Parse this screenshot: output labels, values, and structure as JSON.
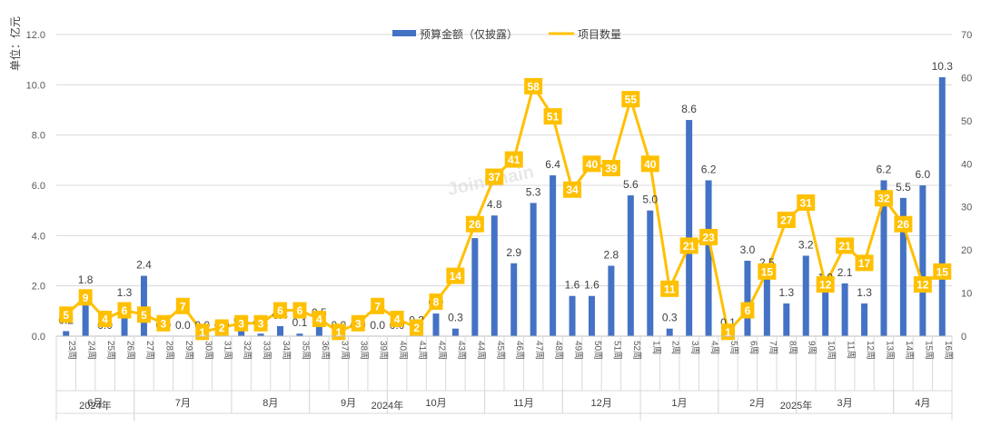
{
  "chart_data": {
    "type": "bar+line",
    "y_unit_label": "单位：亿元",
    "left_axis": {
      "min": 0,
      "max": 12,
      "step": 2,
      "ticks": [
        "0.0",
        "2.0",
        "4.0",
        "6.0",
        "8.0",
        "10.0",
        "12.0"
      ]
    },
    "right_axis": {
      "min": 0,
      "max": 70,
      "step": 10,
      "ticks": [
        "0",
        "10",
        "20",
        "30",
        "40",
        "50",
        "60",
        "70"
      ]
    },
    "legend": {
      "position": "top-center",
      "items": [
        "预算金额（仅披露）",
        "项目数量"
      ]
    },
    "colors": {
      "bar": "#4472C4",
      "line": "#FFC000",
      "grid": "#d9d9d9"
    },
    "watermark": "JoinChain",
    "weeks": [
      "23周",
      "24周",
      "25周",
      "26周",
      "27周",
      "28周",
      "29周",
      "30周",
      "31周",
      "32周",
      "33周",
      "34周",
      "35周",
      "36周",
      "37周",
      "38周",
      "39周",
      "40周",
      "41周",
      "42周",
      "43周",
      "44周",
      "45周",
      "46周",
      "47周",
      "48周",
      "49周",
      "50周",
      "51周",
      "52周",
      "1周",
      "2周",
      "3周",
      "4周",
      "5周",
      "6周",
      "7周",
      "8周",
      "9周",
      "10周",
      "11周",
      "12周",
      "13周",
      "14周",
      "15周",
      "16周"
    ],
    "series": [
      {
        "name": "预算金额（仅披露）",
        "type": "bar",
        "axis": "left",
        "values": [
          0.2,
          1.8,
          0.0,
          1.3,
          2.4,
          0.0,
          0.0,
          0.0,
          0.0,
          0.2,
          0.1,
          0.4,
          0.1,
          0.5,
          0.0,
          0.0,
          0.0,
          0.0,
          0.2,
          0.9,
          0.3,
          3.9,
          4.8,
          2.9,
          5.3,
          6.4,
          1.6,
          1.6,
          2.8,
          5.6,
          5.0,
          0.3,
          8.6,
          6.2,
          0.1,
          3.0,
          2.5,
          1.3,
          3.2,
          1.9,
          2.1,
          1.3,
          6.2,
          5.5,
          6.0,
          10.3
        ],
        "labels": [
          "0.2",
          "1.8",
          "0.0",
          "1.3",
          "2.4",
          "0.0",
          "0.0",
          "0.0",
          "0.0",
          "0.2",
          "0.1",
          "0.4",
          "0.1",
          "0.5",
          "0.0",
          "0.0",
          "0.0",
          "0.0",
          "0.2",
          "0.9",
          "0.3",
          "3.9",
          "4.8",
          "2.9",
          "5.3",
          "6.4",
          "1.6",
          "1.6",
          "2.8",
          "5.6",
          "5.0",
          "0.3",
          "8.6",
          "6.2",
          "0.1",
          "3.0",
          "2.5",
          "1.3",
          "3.2",
          "1.9",
          "2.1",
          "1.3",
          "6.2",
          "5.5",
          "6.0",
          "10.3"
        ]
      },
      {
        "name": "项目数量",
        "type": "line",
        "axis": "right",
        "values": [
          5,
          9,
          4,
          6,
          5,
          3,
          7,
          1,
          2,
          3,
          3,
          6,
          6,
          4,
          1,
          3,
          7,
          4,
          2,
          8,
          14,
          26,
          37,
          41,
          58,
          51,
          34,
          40,
          39,
          55,
          40,
          11,
          21,
          23,
          1,
          6,
          15,
          27,
          31,
          12,
          21,
          17,
          32,
          26,
          12,
          15
        ]
      }
    ],
    "months": [
      {
        "label": "6月",
        "start": 0,
        "end": 3
      },
      {
        "label": "7月",
        "start": 4,
        "end": 8
      },
      {
        "label": "8月",
        "start": 9,
        "end": 12
      },
      {
        "label": "9月",
        "start": 13,
        "end": 16
      },
      {
        "label": "10月",
        "start": 17,
        "end": 21
      },
      {
        "label": "11月",
        "start": 22,
        "end": 25
      },
      {
        "label": "12月",
        "start": 26,
        "end": 29
      },
      {
        "label": "1月",
        "start": 30,
        "end": 33
      },
      {
        "label": "2月",
        "start": 34,
        "end": 37
      },
      {
        "label": "3月",
        "start": 38,
        "end": 42
      },
      {
        "label": "4月",
        "start": 43,
        "end": 45
      }
    ],
    "years": [
      {
        "label": "2024年",
        "start": 0,
        "end": 3
      },
      {
        "label": "2024年",
        "start": 4,
        "end": 29
      },
      {
        "label": "2025年",
        "start": 30,
        "end": 45
      }
    ]
  }
}
